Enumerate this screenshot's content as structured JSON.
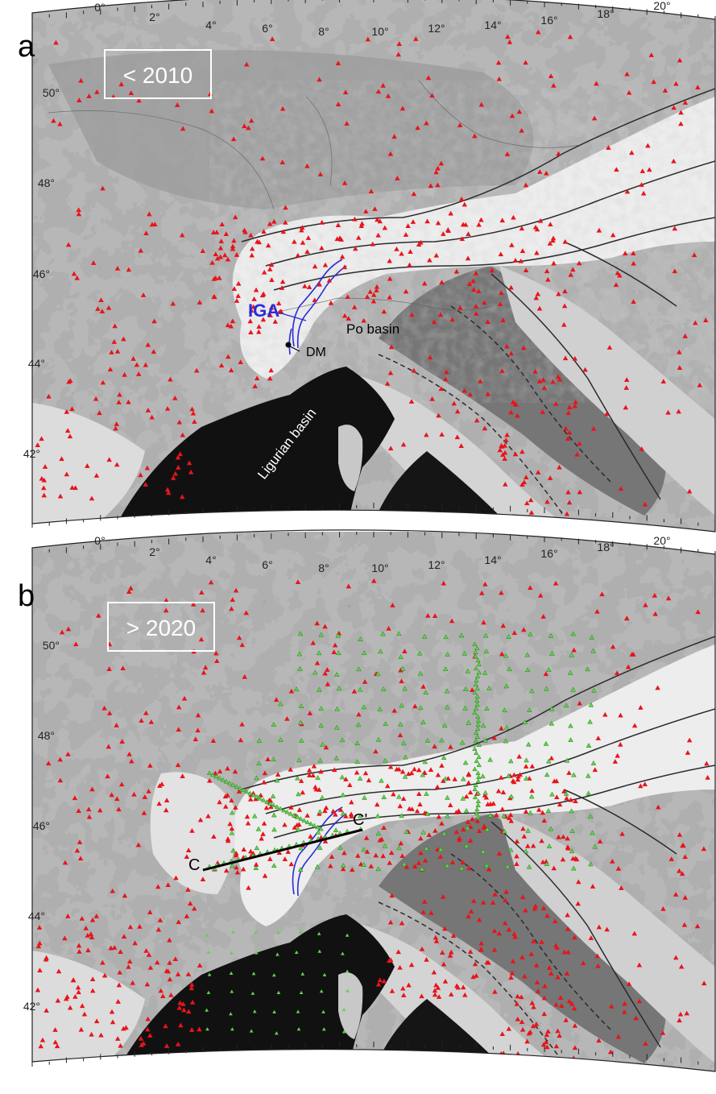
{
  "figure": {
    "panels": [
      {
        "letter": "a",
        "period": "< 2010",
        "lon_labels": [
          "0°",
          "2°",
          "4°",
          "6°",
          "8°",
          "10°",
          "12°",
          "14°",
          "16°",
          "18°",
          "20°"
        ],
        "lat_labels": [
          "50°",
          "48°",
          "46°",
          "44°",
          "42°"
        ],
        "annotations": {
          "iga": "IGA",
          "dm": "DM",
          "po_basin": "Po basin",
          "ligurian_basin": "Ligurian basin"
        },
        "legacy_stations": 520,
        "new_stations": 0
      },
      {
        "letter": "b",
        "period": "> 2020",
        "lon_labels": [
          "0°",
          "2°",
          "4°",
          "6°",
          "8°",
          "10°",
          "12°",
          "14°",
          "16°",
          "18°",
          "20°"
        ],
        "lat_labels": [
          "50°",
          "48°",
          "46°",
          "44°",
          "42°"
        ],
        "profile_start": "C",
        "profile_end": "C'",
        "legacy_stations": 760,
        "new_stations": 430
      }
    ],
    "colors": {
      "land_base": "#a8a8a8",
      "sea": "#111111",
      "alps": "#f2f2f2",
      "station_red": "#e8141b",
      "station_green": "#5fd44a",
      "iga_blue": "#2a2ad8",
      "label_box": "#ffffff"
    }
  }
}
